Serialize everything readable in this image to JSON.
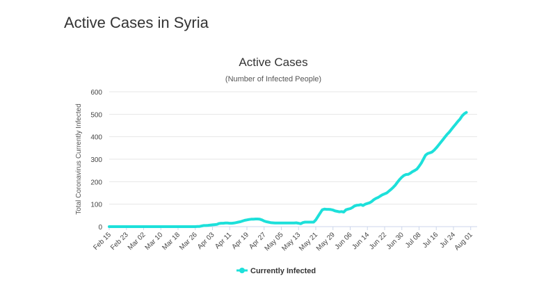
{
  "page": {
    "title": "Active Cases in Syria"
  },
  "chart_data": {
    "type": "line",
    "title": "Active Cases",
    "subtitle": "(Number of Infected People)",
    "xlabel": "",
    "ylabel": "Total Coronavirus Currently Infected",
    "ylim": [
      0,
      600
    ],
    "y_ticks": [
      0,
      100,
      200,
      300,
      400,
      500,
      600
    ],
    "grid": true,
    "legend_position": "bottom-center",
    "x_tick_labels": [
      "Feb 15",
      "Feb 23",
      "Mar 02",
      "Mar 10",
      "Mar 18",
      "Mar 26",
      "Apr 03",
      "Apr 11",
      "Apr 19",
      "Apr 27",
      "May 05",
      "May 13",
      "May 21",
      "May 29",
      "Jun 06",
      "Jun 14",
      "Jun 22",
      "Jun 30",
      "Jul 08",
      "Jul 16",
      "Jul 24",
      "Aug 01"
    ],
    "x_tick_index_step": 8,
    "x_count": 172,
    "series": [
      {
        "name": "Currently Infected",
        "color": "#1de0da",
        "points": [
          [
            0,
            0
          ],
          [
            40,
            0
          ],
          [
            41,
            1
          ],
          [
            42,
            1
          ],
          [
            43,
            3
          ],
          [
            44,
            5
          ],
          [
            45,
            5
          ],
          [
            46,
            6
          ],
          [
            47,
            7
          ],
          [
            48,
            8
          ],
          [
            49,
            9
          ],
          [
            50,
            10
          ],
          [
            51,
            14
          ],
          [
            52,
            15
          ],
          [
            53,
            15
          ],
          [
            54,
            16
          ],
          [
            55,
            16
          ],
          [
            56,
            15
          ],
          [
            57,
            15
          ],
          [
            58,
            16
          ],
          [
            59,
            18
          ],
          [
            60,
            20
          ],
          [
            61,
            22
          ],
          [
            62,
            25
          ],
          [
            63,
            28
          ],
          [
            64,
            30
          ],
          [
            65,
            32
          ],
          [
            66,
            33
          ],
          [
            67,
            33
          ],
          [
            68,
            34
          ],
          [
            69,
            34
          ],
          [
            70,
            33
          ],
          [
            71,
            30
          ],
          [
            72,
            25
          ],
          [
            73,
            22
          ],
          [
            74,
            20
          ],
          [
            75,
            18
          ],
          [
            76,
            17
          ],
          [
            77,
            16
          ],
          [
            78,
            16
          ],
          [
            79,
            16
          ],
          [
            80,
            16
          ],
          [
            81,
            16
          ],
          [
            82,
            16
          ],
          [
            83,
            16
          ],
          [
            84,
            16
          ],
          [
            85,
            16
          ],
          [
            86,
            16
          ],
          [
            87,
            17
          ],
          [
            88,
            15
          ],
          [
            89,
            13
          ],
          [
            90,
            18
          ],
          [
            91,
            20
          ],
          [
            92,
            20
          ],
          [
            93,
            20
          ],
          [
            94,
            20
          ],
          [
            95,
            20
          ],
          [
            96,
            30
          ],
          [
            97,
            45
          ],
          [
            98,
            60
          ],
          [
            99,
            75
          ],
          [
            100,
            78
          ],
          [
            101,
            77
          ],
          [
            102,
            77
          ],
          [
            103,
            76
          ],
          [
            104,
            74
          ],
          [
            105,
            70
          ],
          [
            106,
            68
          ],
          [
            107,
            66
          ],
          [
            108,
            67
          ],
          [
            109,
            65
          ],
          [
            110,
            75
          ],
          [
            111,
            78
          ],
          [
            112,
            80
          ],
          [
            113,
            85
          ],
          [
            114,
            92
          ],
          [
            115,
            95
          ],
          [
            116,
            96
          ],
          [
            117,
            98
          ],
          [
            118,
            94
          ],
          [
            119,
            100
          ],
          [
            120,
            103
          ],
          [
            121,
            106
          ],
          [
            122,
            112
          ],
          [
            123,
            120
          ],
          [
            124,
            126
          ],
          [
            125,
            130
          ],
          [
            126,
            136
          ],
          [
            127,
            142
          ],
          [
            128,
            146
          ],
          [
            129,
            150
          ],
          [
            130,
            158
          ],
          [
            131,
            166
          ],
          [
            132,
            175
          ],
          [
            133,
            185
          ],
          [
            134,
            198
          ],
          [
            135,
            210
          ],
          [
            136,
            220
          ],
          [
            137,
            228
          ],
          [
            138,
            232
          ],
          [
            139,
            233
          ],
          [
            140,
            238
          ],
          [
            141,
            245
          ],
          [
            142,
            250
          ],
          [
            143,
            256
          ],
          [
            144,
            268
          ],
          [
            145,
            282
          ],
          [
            146,
            300
          ],
          [
            147,
            318
          ],
          [
            148,
            325
          ],
          [
            149,
            328
          ],
          [
            150,
            332
          ],
          [
            151,
            340
          ],
          [
            152,
            350
          ],
          [
            153,
            362
          ],
          [
            154,
            374
          ],
          [
            155,
            386
          ],
          [
            156,
            398
          ],
          [
            157,
            410
          ],
          [
            158,
            420
          ],
          [
            159,
            432
          ],
          [
            160,
            444
          ],
          [
            161,
            456
          ],
          [
            162,
            468
          ],
          [
            163,
            478
          ],
          [
            164,
            492
          ],
          [
            165,
            502
          ],
          [
            166,
            508
          ]
        ]
      }
    ]
  }
}
